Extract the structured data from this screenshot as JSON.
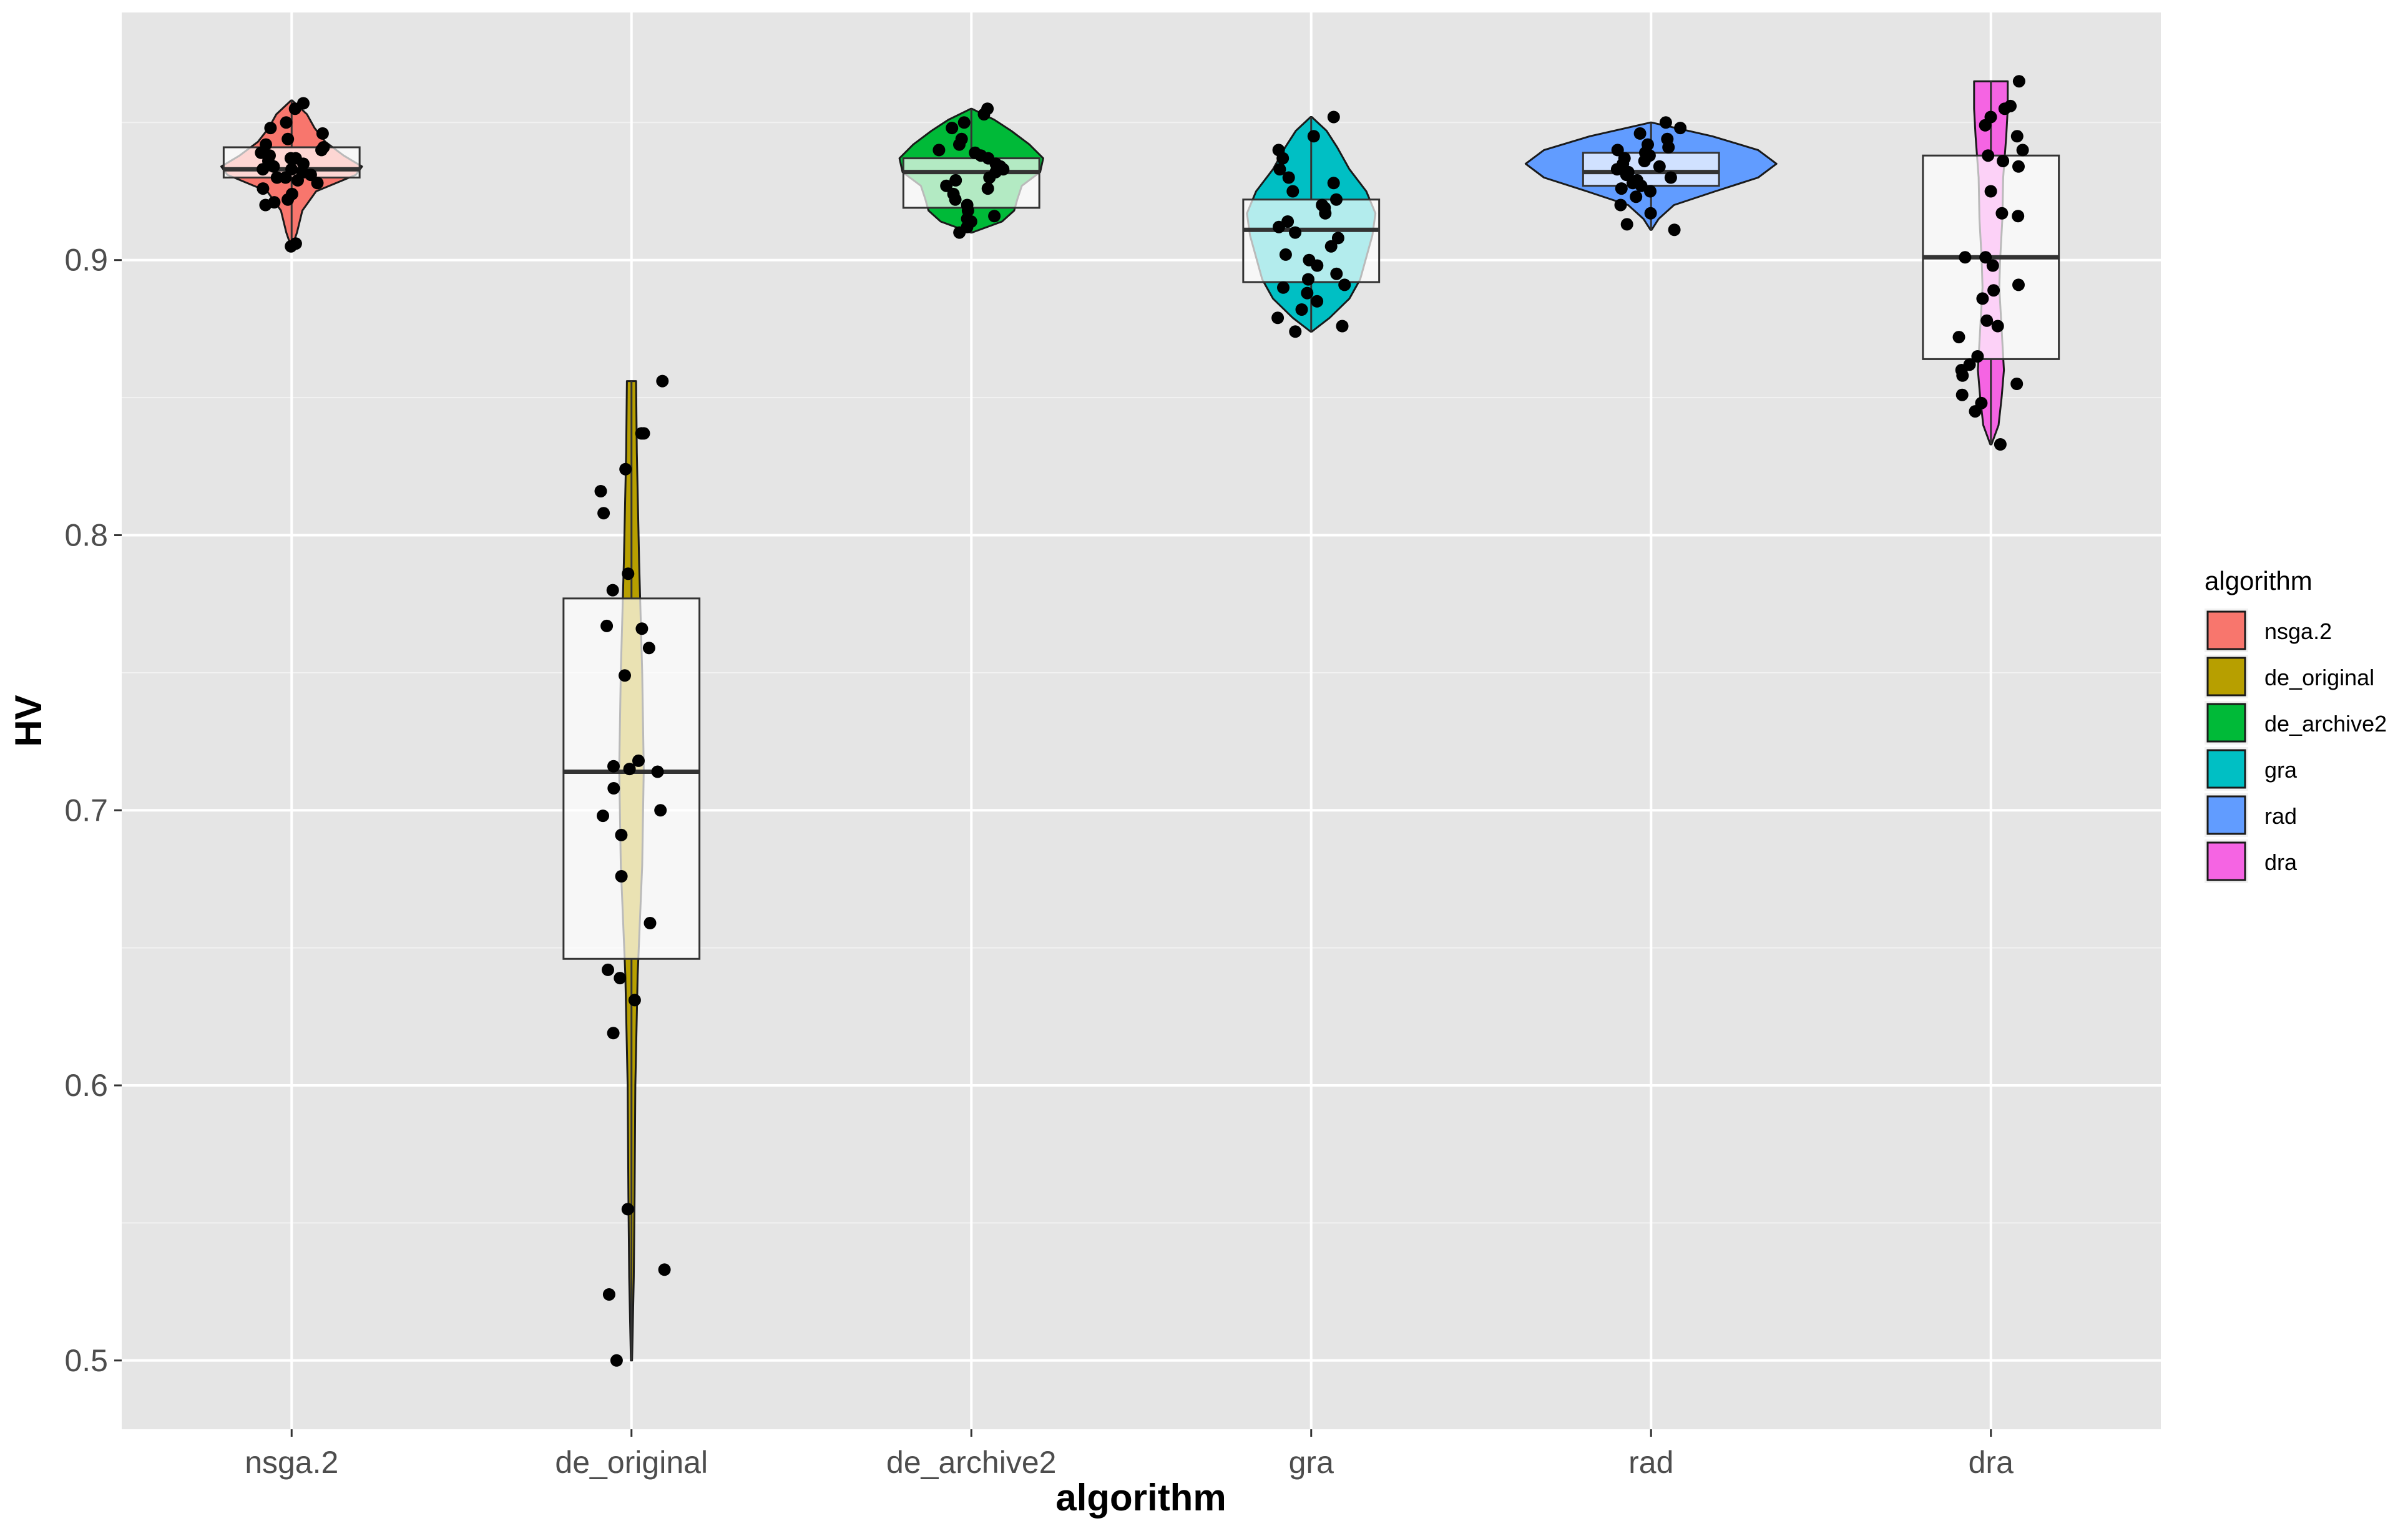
{
  "chart_data": {
    "type": "violin-box-jitter",
    "xlabel": "algorithm",
    "ylabel": "HV",
    "ylim": [
      0.475,
      0.99
    ],
    "yticks": [
      "0.5",
      "0.6",
      "0.7",
      "0.8",
      "0.9"
    ],
    "ytick_values": [
      0.5,
      0.6,
      0.7,
      0.8,
      0.9
    ],
    "grid": true,
    "panel_background": "#e5e5e5",
    "legend": {
      "title": "algorithm",
      "position": "right"
    },
    "categories": [
      "nsga.2",
      "de_original",
      "de_archive2",
      "gra",
      "rad",
      "dra"
    ],
    "series": [
      {
        "name": "nsga.2",
        "color": "#f8766d",
        "box": {
          "q1": 0.93,
          "median": 0.933,
          "q3": 0.941,
          "whisker_low": 0.905,
          "whisker_high": 0.958
        },
        "violin": [
          [
            0.905,
            0.004
          ],
          [
            0.91,
            0.035
          ],
          [
            0.918,
            0.07
          ],
          [
            0.925,
            0.16
          ],
          [
            0.931,
            0.42
          ],
          [
            0.934,
            0.46
          ],
          [
            0.938,
            0.34
          ],
          [
            0.943,
            0.22
          ],
          [
            0.948,
            0.15
          ],
          [
            0.953,
            0.1
          ],
          [
            0.958,
            0.004
          ]
        ],
        "points": [
          0.905,
          0.906,
          0.92,
          0.921,
          0.922,
          0.924,
          0.926,
          0.928,
          0.929,
          0.93,
          0.93,
          0.931,
          0.932,
          0.933,
          0.933,
          0.934,
          0.935,
          0.936,
          0.937,
          0.937,
          0.938,
          0.939,
          0.94,
          0.941,
          0.942,
          0.944,
          0.946,
          0.948,
          0.95,
          0.955,
          0.957
        ]
      },
      {
        "name": "de_original",
        "color": "#b79f00",
        "box": {
          "q1": 0.646,
          "median": 0.714,
          "q3": 0.777,
          "whisker_low": 0.5,
          "whisker_high": 0.856
        },
        "violin": [
          [
            0.5,
            0.004
          ],
          [
            0.53,
            0.015
          ],
          [
            0.56,
            0.02
          ],
          [
            0.6,
            0.025
          ],
          [
            0.64,
            0.04
          ],
          [
            0.68,
            0.07
          ],
          [
            0.715,
            0.08
          ],
          [
            0.75,
            0.07
          ],
          [
            0.79,
            0.05
          ],
          [
            0.83,
            0.035
          ],
          [
            0.856,
            0.03
          ]
        ],
        "points": [
          0.5,
          0.524,
          0.533,
          0.555,
          0.619,
          0.631,
          0.639,
          0.642,
          0.659,
          0.676,
          0.691,
          0.698,
          0.7,
          0.708,
          0.714,
          0.715,
          0.716,
          0.718,
          0.749,
          0.759,
          0.766,
          0.767,
          0.78,
          0.786,
          0.808,
          0.816,
          0.824,
          0.837,
          0.837,
          0.856
        ]
      },
      {
        "name": "de_archive2",
        "color": "#00ba38",
        "box": {
          "q1": 0.919,
          "median": 0.932,
          "q3": 0.937,
          "whisker_low": 0.91,
          "whisker_high": 0.955
        },
        "violin": [
          [
            0.91,
            0.004
          ],
          [
            0.914,
            0.2
          ],
          [
            0.918,
            0.28
          ],
          [
            0.922,
            0.3
          ],
          [
            0.927,
            0.33
          ],
          [
            0.932,
            0.45
          ],
          [
            0.937,
            0.47
          ],
          [
            0.942,
            0.38
          ],
          [
            0.947,
            0.26
          ],
          [
            0.951,
            0.15
          ],
          [
            0.955,
            0.004
          ]
        ],
        "points": [
          0.91,
          0.912,
          0.914,
          0.915,
          0.916,
          0.918,
          0.92,
          0.922,
          0.924,
          0.926,
          0.927,
          0.929,
          0.93,
          0.932,
          0.933,
          0.934,
          0.935,
          0.937,
          0.938,
          0.939,
          0.94,
          0.942,
          0.944,
          0.948,
          0.95,
          0.953,
          0.955
        ]
      },
      {
        "name": "gra",
        "color": "#00bfc4",
        "box": {
          "q1": 0.892,
          "median": 0.911,
          "q3": 0.922,
          "whisker_low": 0.874,
          "whisker_high": 0.952
        },
        "violin": [
          [
            0.874,
            0.004
          ],
          [
            0.879,
            0.12
          ],
          [
            0.886,
            0.25
          ],
          [
            0.893,
            0.32
          ],
          [
            0.901,
            0.36
          ],
          [
            0.909,
            0.4
          ],
          [
            0.917,
            0.42
          ],
          [
            0.925,
            0.36
          ],
          [
            0.933,
            0.25
          ],
          [
            0.941,
            0.17
          ],
          [
            0.947,
            0.1
          ],
          [
            0.952,
            0.004
          ]
        ],
        "points": [
          0.874,
          0.876,
          0.879,
          0.882,
          0.885,
          0.888,
          0.89,
          0.891,
          0.893,
          0.895,
          0.898,
          0.9,
          0.902,
          0.905,
          0.908,
          0.91,
          0.912,
          0.914,
          0.917,
          0.919,
          0.92,
          0.922,
          0.925,
          0.928,
          0.93,
          0.933,
          0.937,
          0.94,
          0.945,
          0.952
        ]
      },
      {
        "name": "rad",
        "color": "#619cff",
        "box": {
          "q1": 0.927,
          "median": 0.932,
          "q3": 0.939,
          "whisker_low": 0.911,
          "whisker_high": 0.95
        },
        "violin": [
          [
            0.911,
            0.004
          ],
          [
            0.915,
            0.05
          ],
          [
            0.92,
            0.15
          ],
          [
            0.925,
            0.42
          ],
          [
            0.93,
            0.7
          ],
          [
            0.935,
            0.82
          ],
          [
            0.94,
            0.7
          ],
          [
            0.945,
            0.4
          ],
          [
            0.95,
            0.004
          ]
        ],
        "points": [
          0.911,
          0.913,
          0.917,
          0.92,
          0.923,
          0.925,
          0.926,
          0.927,
          0.928,
          0.929,
          0.93,
          0.931,
          0.932,
          0.933,
          0.934,
          0.935,
          0.936,
          0.937,
          0.938,
          0.939,
          0.94,
          0.941,
          0.942,
          0.944,
          0.946,
          0.948,
          0.95
        ]
      },
      {
        "name": "dra",
        "color": "#f564e3",
        "box": {
          "q1": 0.864,
          "median": 0.901,
          "q3": 0.938,
          "whisker_low": 0.833,
          "whisker_high": 0.965
        },
        "violin": [
          [
            0.833,
            0.004
          ],
          [
            0.84,
            0.05
          ],
          [
            0.85,
            0.07
          ],
          [
            0.86,
            0.085
          ],
          [
            0.875,
            0.07
          ],
          [
            0.89,
            0.055
          ],
          [
            0.9,
            0.06
          ],
          [
            0.915,
            0.075
          ],
          [
            0.93,
            0.08
          ],
          [
            0.945,
            0.1
          ],
          [
            0.955,
            0.11
          ],
          [
            0.965,
            0.11
          ]
        ],
        "points": [
          0.833,
          0.845,
          0.848,
          0.851,
          0.855,
          0.858,
          0.86,
          0.862,
          0.865,
          0.872,
          0.876,
          0.878,
          0.886,
          0.889,
          0.891,
          0.898,
          0.901,
          0.901,
          0.916,
          0.917,
          0.925,
          0.934,
          0.936,
          0.938,
          0.94,
          0.945,
          0.949,
          0.952,
          0.955,
          0.956,
          0.965
        ]
      }
    ]
  }
}
